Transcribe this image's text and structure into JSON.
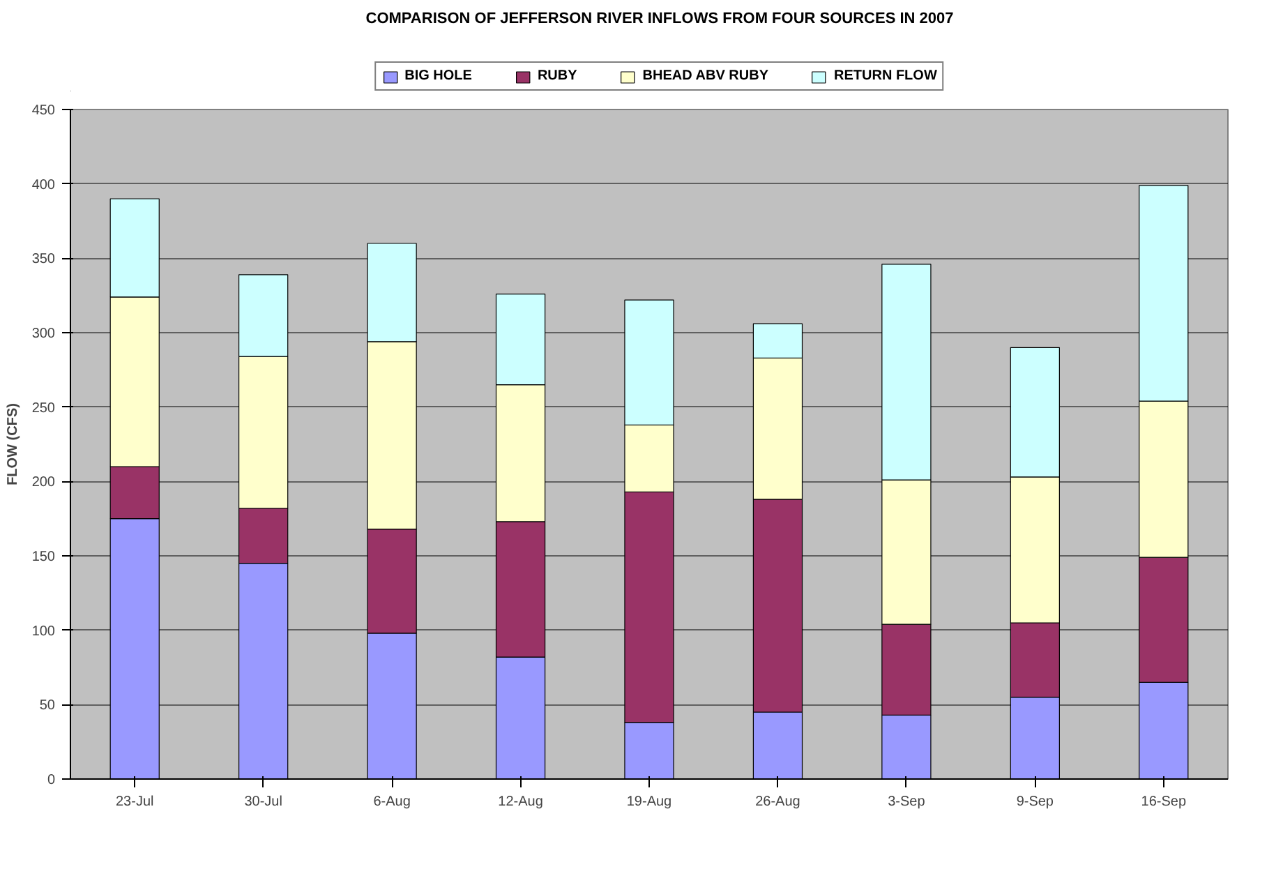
{
  "chart_data": {
    "type": "bar",
    "title": "COMPARISON OF JEFFERSON RIVER INFLOWS FROM FOUR SOURCES IN 2007",
    "ylabel": "FLOW (CFS)",
    "categories": [
      "23-Jul",
      "30-Jul",
      "6-Aug",
      "12-Aug",
      "19-Aug",
      "26-Aug",
      "3-Sep",
      "9-Sep",
      "16-Sep"
    ],
    "stacked": true,
    "series": [
      {
        "name": "BIG HOLE",
        "color": "#9999ff",
        "values": [
          175,
          145,
          98,
          82,
          38,
          45,
          43,
          55,
          65
        ]
      },
      {
        "name": "RUBY",
        "color": "#993366",
        "values": [
          35,
          37,
          70,
          91,
          155,
          143,
          61,
          50,
          84
        ]
      },
      {
        "name": "BHEAD ABV RUBY",
        "color": "#ffffcc",
        "values": [
          114,
          102,
          126,
          92,
          45,
          95,
          97,
          98,
          105
        ]
      },
      {
        "name": "RETURN FLOW",
        "color": "#ccffff",
        "values": [
          66,
          55,
          66,
          61,
          84,
          23,
          145,
          87,
          145
        ]
      }
    ],
    "ylim": [
      0,
      450
    ],
    "yticks": [
      0,
      50,
      100,
      150,
      200,
      250,
      300,
      350,
      400,
      450
    ],
    "grid": "y",
    "legend": "top"
  }
}
